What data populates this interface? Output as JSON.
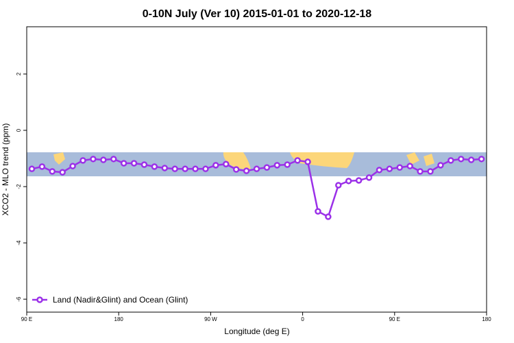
{
  "chart_data": {
    "type": "line",
    "title": "0-10N July (Ver 10)   2015-01-01 to 2020-12-18",
    "x_label": "Longitude (deg E)",
    "y_label": "XCO2 - MLO trend (ppm)",
    "x": [
      95,
      105,
      115,
      125,
      135,
      145,
      155,
      165,
      175,
      185,
      195,
      205,
      215,
      225,
      235,
      245,
      255,
      265,
      275,
      285,
      295,
      305,
      315,
      325,
      335,
      345,
      355,
      365,
      375,
      385,
      395,
      405,
      415,
      425,
      435,
      445,
      455,
      465,
      475,
      485,
      495,
      505,
      515,
      525,
      535
    ],
    "series": [
      {
        "name": "Land (Nadir&Glint) and Ocean (Glint)",
        "color": "#9b30e8",
        "values": [
          -1.37,
          -1.29,
          -1.46,
          -1.49,
          -1.27,
          -1.07,
          -1.02,
          -1.05,
          -1.02,
          -1.17,
          -1.17,
          -1.22,
          -1.29,
          -1.34,
          -1.37,
          -1.37,
          -1.37,
          -1.37,
          -1.24,
          -1.2,
          -1.39,
          -1.44,
          -1.37,
          -1.32,
          -1.24,
          -1.22,
          -1.07,
          -1.12,
          -2.88,
          -3.07,
          -1.95,
          -1.8,
          -1.78,
          -1.68,
          -1.41,
          -1.37,
          -1.32,
          -1.27,
          -1.46,
          -1.46,
          -1.24,
          -1.07,
          -1.02,
          -1.05,
          -1.02
        ]
      }
    ],
    "xlim": [
      90,
      540
    ],
    "xticks": [
      {
        "value": 90,
        "label": "90 E"
      },
      {
        "value": 180,
        "label": "180"
      },
      {
        "value": 270,
        "label": "90 W"
      },
      {
        "value": 360,
        "label": "0"
      },
      {
        "value": 450,
        "label": "90 E"
      },
      {
        "value": 540,
        "label": "180"
      }
    ],
    "ylim": [
      -6.46,
      3.68
    ],
    "yticks": [
      -6,
      -4,
      -2,
      0,
      2
    ],
    "legend": "bottom-left"
  }
}
